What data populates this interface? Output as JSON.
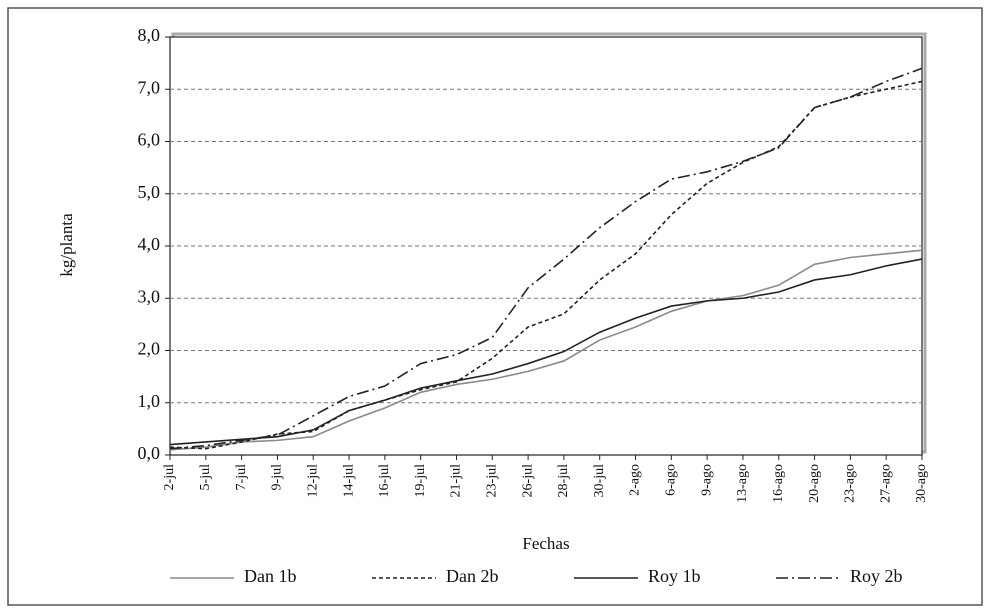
{
  "chart_data": {
    "type": "line",
    "y_label": "kg/planta",
    "x_label": "Fechas",
    "categories": [
      "2-jul",
      "5-jul",
      "7-jul",
      "9-jul",
      "12-jul",
      "14-jul",
      "16-jul",
      "19-jul",
      "21-jul",
      "23-jul",
      "26-jul",
      "28-jul",
      "30-jul",
      "2-ago",
      "6-ago",
      "9-ago",
      "13-ago",
      "16-ago",
      "20-ago",
      "23-ago",
      "27-ago",
      "30-ago"
    ],
    "series": [
      {
        "name": "Dan 1b",
        "color": "#8a8a8a",
        "dash": "solid",
        "values": [
          0.1,
          0.15,
          0.25,
          0.28,
          0.35,
          0.65,
          0.9,
          1.2,
          1.35,
          1.45,
          1.6,
          1.8,
          2.2,
          2.45,
          2.75,
          2.95,
          3.05,
          3.25,
          3.65,
          3.78,
          3.85,
          3.92
        ]
      },
      {
        "name": "Dan 2b",
        "color": "#222222",
        "dash": "dashed",
        "values": [
          0.15,
          0.12,
          0.25,
          0.4,
          0.45,
          0.85,
          1.05,
          1.25,
          1.4,
          1.85,
          2.45,
          2.7,
          3.35,
          3.85,
          4.6,
          5.2,
          5.6,
          5.9,
          6.65,
          6.85,
          7.0,
          7.15
        ]
      },
      {
        "name": "Roy 1b",
        "color": "#222222",
        "dash": "solid",
        "values": [
          0.2,
          0.25,
          0.3,
          0.35,
          0.48,
          0.85,
          1.05,
          1.28,
          1.42,
          1.55,
          1.75,
          1.98,
          2.35,
          2.62,
          2.85,
          2.95,
          3.0,
          3.12,
          3.35,
          3.45,
          3.62,
          3.75
        ]
      },
      {
        "name": "Roy 2b",
        "color": "#222222",
        "dash": "dashdot",
        "values": [
          0.12,
          0.18,
          0.28,
          0.38,
          0.75,
          1.12,
          1.32,
          1.75,
          1.92,
          2.25,
          3.2,
          3.75,
          4.35,
          4.85,
          5.28,
          5.42,
          5.62,
          5.88,
          6.65,
          6.85,
          7.15,
          7.4
        ]
      }
    ],
    "ylim": [
      0,
      8
    ],
    "yticks": [
      {
        "value": 0,
        "label": "0,0"
      },
      {
        "value": 1,
        "label": "1,0"
      },
      {
        "value": 2,
        "label": "2,0"
      },
      {
        "value": 3,
        "label": "3,0"
      },
      {
        "value": 4,
        "label": "4,0"
      },
      {
        "value": 5,
        "label": "5,0"
      },
      {
        "value": 6,
        "label": "6,0"
      },
      {
        "value": 7,
        "label": "7,0"
      },
      {
        "value": 8,
        "label": "8,0"
      }
    ],
    "grid": true,
    "legend": "bottom"
  }
}
